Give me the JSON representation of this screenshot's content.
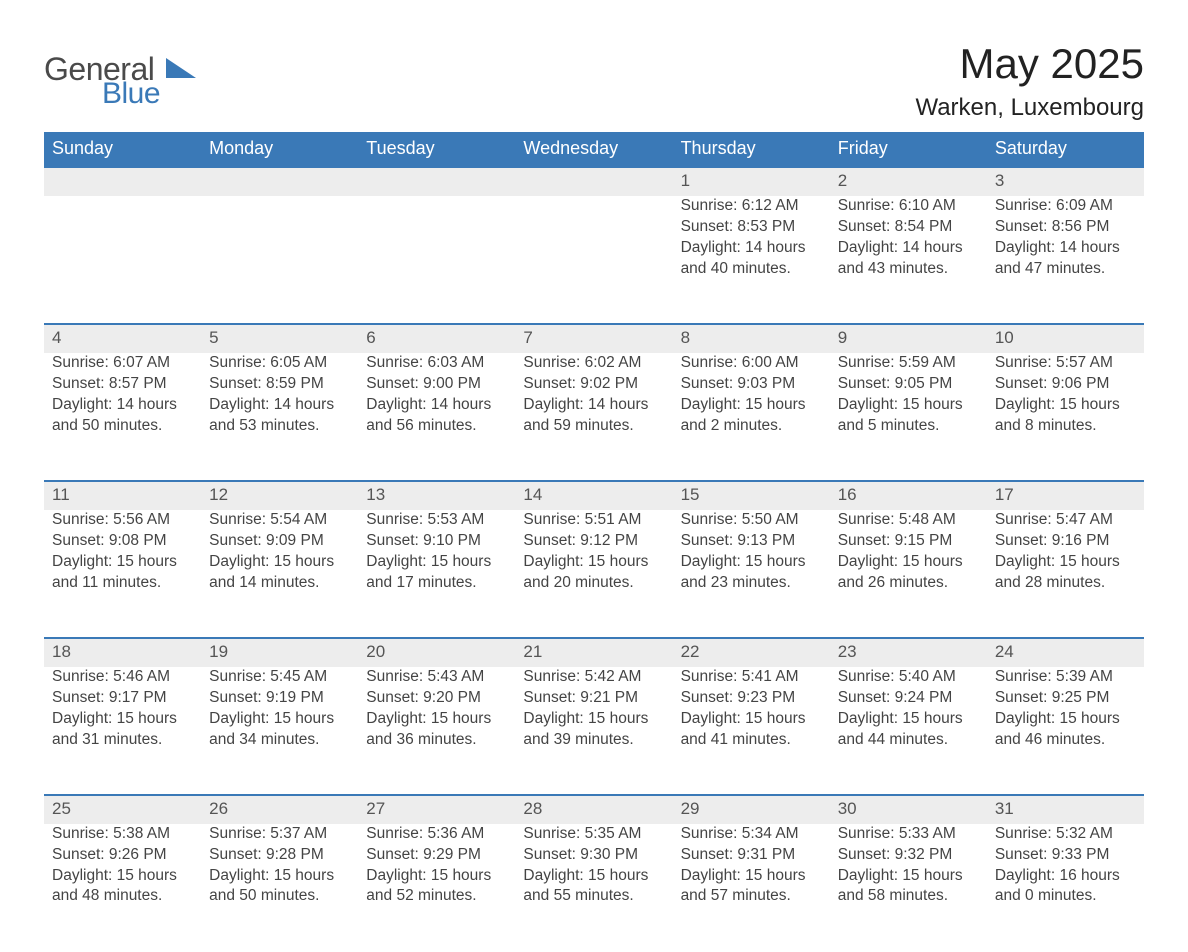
{
  "brand": {
    "part1": "General",
    "part2": "Blue",
    "accent": "#3a79b7",
    "text_gray": "#4a4a4a"
  },
  "title": "May 2025",
  "location": "Warken, Luxembourg",
  "header_bg": "#3a79b7",
  "header_fg": "#ffffff",
  "daynum_bg": "#ededed",
  "daynum_border": "#3a79b7",
  "body_bg": "#ffffff",
  "text_color": "#444444",
  "weekdays": [
    "Sunday",
    "Monday",
    "Tuesday",
    "Wednesday",
    "Thursday",
    "Friday",
    "Saturday"
  ],
  "weeks": [
    [
      null,
      null,
      null,
      null,
      {
        "n": "1",
        "sunrise": "6:12 AM",
        "sunset": "8:53 PM",
        "daylight": "14 hours and 40 minutes."
      },
      {
        "n": "2",
        "sunrise": "6:10 AM",
        "sunset": "8:54 PM",
        "daylight": "14 hours and 43 minutes."
      },
      {
        "n": "3",
        "sunrise": "6:09 AM",
        "sunset": "8:56 PM",
        "daylight": "14 hours and 47 minutes."
      }
    ],
    [
      {
        "n": "4",
        "sunrise": "6:07 AM",
        "sunset": "8:57 PM",
        "daylight": "14 hours and 50 minutes."
      },
      {
        "n": "5",
        "sunrise": "6:05 AM",
        "sunset": "8:59 PM",
        "daylight": "14 hours and 53 minutes."
      },
      {
        "n": "6",
        "sunrise": "6:03 AM",
        "sunset": "9:00 PM",
        "daylight": "14 hours and 56 minutes."
      },
      {
        "n": "7",
        "sunrise": "6:02 AM",
        "sunset": "9:02 PM",
        "daylight": "14 hours and 59 minutes."
      },
      {
        "n": "8",
        "sunrise": "6:00 AM",
        "sunset": "9:03 PM",
        "daylight": "15 hours and 2 minutes."
      },
      {
        "n": "9",
        "sunrise": "5:59 AM",
        "sunset": "9:05 PM",
        "daylight": "15 hours and 5 minutes."
      },
      {
        "n": "10",
        "sunrise": "5:57 AM",
        "sunset": "9:06 PM",
        "daylight": "15 hours and 8 minutes."
      }
    ],
    [
      {
        "n": "11",
        "sunrise": "5:56 AM",
        "sunset": "9:08 PM",
        "daylight": "15 hours and 11 minutes."
      },
      {
        "n": "12",
        "sunrise": "5:54 AM",
        "sunset": "9:09 PM",
        "daylight": "15 hours and 14 minutes."
      },
      {
        "n": "13",
        "sunrise": "5:53 AM",
        "sunset": "9:10 PM",
        "daylight": "15 hours and 17 minutes."
      },
      {
        "n": "14",
        "sunrise": "5:51 AM",
        "sunset": "9:12 PM",
        "daylight": "15 hours and 20 minutes."
      },
      {
        "n": "15",
        "sunrise": "5:50 AM",
        "sunset": "9:13 PM",
        "daylight": "15 hours and 23 minutes."
      },
      {
        "n": "16",
        "sunrise": "5:48 AM",
        "sunset": "9:15 PM",
        "daylight": "15 hours and 26 minutes."
      },
      {
        "n": "17",
        "sunrise": "5:47 AM",
        "sunset": "9:16 PM",
        "daylight": "15 hours and 28 minutes."
      }
    ],
    [
      {
        "n": "18",
        "sunrise": "5:46 AM",
        "sunset": "9:17 PM",
        "daylight": "15 hours and 31 minutes."
      },
      {
        "n": "19",
        "sunrise": "5:45 AM",
        "sunset": "9:19 PM",
        "daylight": "15 hours and 34 minutes."
      },
      {
        "n": "20",
        "sunrise": "5:43 AM",
        "sunset": "9:20 PM",
        "daylight": "15 hours and 36 minutes."
      },
      {
        "n": "21",
        "sunrise": "5:42 AM",
        "sunset": "9:21 PM",
        "daylight": "15 hours and 39 minutes."
      },
      {
        "n": "22",
        "sunrise": "5:41 AM",
        "sunset": "9:23 PM",
        "daylight": "15 hours and 41 minutes."
      },
      {
        "n": "23",
        "sunrise": "5:40 AM",
        "sunset": "9:24 PM",
        "daylight": "15 hours and 44 minutes."
      },
      {
        "n": "24",
        "sunrise": "5:39 AM",
        "sunset": "9:25 PM",
        "daylight": "15 hours and 46 minutes."
      }
    ],
    [
      {
        "n": "25",
        "sunrise": "5:38 AM",
        "sunset": "9:26 PM",
        "daylight": "15 hours and 48 minutes."
      },
      {
        "n": "26",
        "sunrise": "5:37 AM",
        "sunset": "9:28 PM",
        "daylight": "15 hours and 50 minutes."
      },
      {
        "n": "27",
        "sunrise": "5:36 AM",
        "sunset": "9:29 PM",
        "daylight": "15 hours and 52 minutes."
      },
      {
        "n": "28",
        "sunrise": "5:35 AM",
        "sunset": "9:30 PM",
        "daylight": "15 hours and 55 minutes."
      },
      {
        "n": "29",
        "sunrise": "5:34 AM",
        "sunset": "9:31 PM",
        "daylight": "15 hours and 57 minutes."
      },
      {
        "n": "30",
        "sunrise": "5:33 AM",
        "sunset": "9:32 PM",
        "daylight": "15 hours and 58 minutes."
      },
      {
        "n": "31",
        "sunrise": "5:32 AM",
        "sunset": "9:33 PM",
        "daylight": "16 hours and 0 minutes."
      }
    ]
  ],
  "labels": {
    "sunrise": "Sunrise: ",
    "sunset": "Sunset: ",
    "daylight": "Daylight: "
  }
}
